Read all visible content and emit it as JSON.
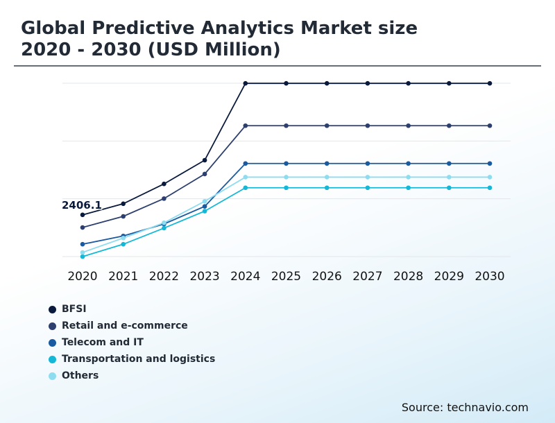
{
  "title_line1": "Global Predictive Analytics Market size",
  "title_line2": "2020 - 2030 (USD Million)",
  "source": "Source: technavio.com",
  "chart_data": {
    "type": "line",
    "title": "Global Predictive Analytics Market size 2020 - 2030 (USD Million)",
    "xlabel": "",
    "ylabel": "",
    "categories": [
      "2020",
      "2021",
      "2022",
      "2023",
      "2024",
      "2025",
      "2026",
      "2027",
      "2028",
      "2029",
      "2030"
    ],
    "ylim": [
      0,
      10000
    ],
    "grid": true,
    "legend_position": "bottom-left",
    "annotation": {
      "series": "BFSI",
      "category": "2020",
      "label": "2406.1"
    },
    "series": [
      {
        "name": "BFSI",
        "color": "#0a1a3c",
        "values": [
          2406.1,
          3048,
          4191,
          5560,
          9993,
          9993,
          9993,
          9993,
          9993,
          9993,
          9993
        ]
      },
      {
        "name": "Retail and e-commerce",
        "color": "#2c3f6e",
        "values": [
          1678,
          2320,
          3345,
          4762,
          7550,
          7550,
          7550,
          7550,
          7550,
          7550,
          7550
        ]
      },
      {
        "name": "Telecom and IT",
        "color": "#1a5aa0",
        "values": [
          714,
          1190,
          1880,
          2895,
          5370,
          5370,
          5370,
          5370,
          5370,
          5370,
          5370
        ]
      },
      {
        "name": "Transportation and logistics",
        "color": "#14b8d6",
        "values": [
          0,
          714,
          1643,
          2620,
          3970,
          3970,
          3970,
          3970,
          3970,
          3970,
          3970
        ]
      },
      {
        "name": "Others",
        "color": "#8edcf0",
        "values": [
          240,
          1070,
          1950,
          3190,
          4583,
          4583,
          4583,
          4583,
          4583,
          4583,
          4583
        ]
      }
    ]
  }
}
